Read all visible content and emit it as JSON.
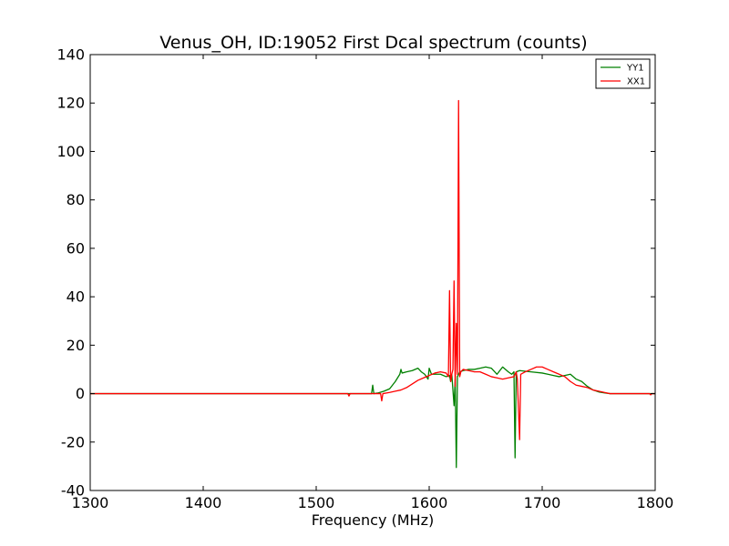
{
  "chart_data": {
    "type": "line",
    "title": "Venus_OH, ID:19052 First Dcal spectrum (counts)",
    "xlabel": "Frequency (MHz)",
    "ylabel": "",
    "xlim": [
      1300,
      1800
    ],
    "ylim": [
      -40,
      140
    ],
    "xticks": [
      1300,
      1400,
      1500,
      1600,
      1700,
      1800
    ],
    "yticks": [
      -40,
      -20,
      0,
      20,
      40,
      60,
      80,
      100,
      120,
      140
    ],
    "grid": false,
    "legend_position": "top-right",
    "series": [
      {
        "name": "YY1",
        "color": "#008000",
        "points": [
          [
            1300,
            0
          ],
          [
            1400,
            0
          ],
          [
            1500,
            0
          ],
          [
            1549,
            0
          ],
          [
            1550,
            3.5
          ],
          [
            1551,
            0
          ],
          [
            1555,
            0.3
          ],
          [
            1560,
            1
          ],
          [
            1565,
            2
          ],
          [
            1570,
            5
          ],
          [
            1574,
            8
          ],
          [
            1575,
            10
          ],
          [
            1576,
            8.5
          ],
          [
            1580,
            9
          ],
          [
            1585,
            9.5
          ],
          [
            1590,
            10.5
          ],
          [
            1593,
            9
          ],
          [
            1596,
            8
          ],
          [
            1599,
            6
          ],
          [
            1600,
            10.5
          ],
          [
            1602,
            8
          ],
          [
            1606,
            8
          ],
          [
            1610,
            8
          ],
          [
            1615,
            7
          ],
          [
            1618,
            7.5
          ],
          [
            1619,
            5
          ],
          [
            1620,
            8
          ],
          [
            1622,
            -5
          ],
          [
            1623,
            6
          ],
          [
            1624,
            -30.5
          ],
          [
            1625,
            7
          ],
          [
            1627,
            9
          ],
          [
            1630,
            9.5
          ],
          [
            1635,
            10
          ],
          [
            1640,
            10
          ],
          [
            1645,
            10.5
          ],
          [
            1650,
            11
          ],
          [
            1655,
            10.5
          ],
          [
            1660,
            8
          ],
          [
            1665,
            11
          ],
          [
            1670,
            9
          ],
          [
            1673,
            8
          ],
          [
            1675,
            9
          ],
          [
            1676,
            -26.5
          ],
          [
            1677,
            9
          ],
          [
            1680,
            9.5
          ],
          [
            1690,
            9
          ],
          [
            1700,
            8.5
          ],
          [
            1705,
            8
          ],
          [
            1710,
            7.5
          ],
          [
            1715,
            7
          ],
          [
            1720,
            7.5
          ],
          [
            1725,
            8
          ],
          [
            1730,
            6
          ],
          [
            1735,
            5
          ],
          [
            1740,
            3
          ],
          [
            1745,
            1.5
          ],
          [
            1750,
            0.7
          ],
          [
            1755,
            0.3
          ],
          [
            1760,
            0
          ],
          [
            1800,
            0
          ]
        ]
      },
      {
        "name": "XX1",
        "color": "#ff0000",
        "points": [
          [
            1300,
            0
          ],
          [
            1400,
            0
          ],
          [
            1500,
            0
          ],
          [
            1528,
            0
          ],
          [
            1529,
            -1
          ],
          [
            1530,
            0
          ],
          [
            1550,
            0
          ],
          [
            1557,
            0
          ],
          [
            1558,
            -3
          ],
          [
            1559,
            0
          ],
          [
            1565,
            0.5
          ],
          [
            1570,
            1
          ],
          [
            1575,
            1.5
          ],
          [
            1580,
            2.5
          ],
          [
            1585,
            4
          ],
          [
            1590,
            5.5
          ],
          [
            1595,
            6.5
          ],
          [
            1600,
            7.5
          ],
          [
            1605,
            8.5
          ],
          [
            1610,
            9
          ],
          [
            1615,
            8.5
          ],
          [
            1617,
            7
          ],
          [
            1618,
            42.5
          ],
          [
            1619,
            5
          ],
          [
            1620,
            8
          ],
          [
            1621,
            10
          ],
          [
            1622,
            46.5
          ],
          [
            1623,
            3
          ],
          [
            1624,
            29
          ],
          [
            1625,
            8
          ],
          [
            1626,
            121
          ],
          [
            1627,
            7
          ],
          [
            1628,
            9
          ],
          [
            1630,
            10
          ],
          [
            1635,
            9.5
          ],
          [
            1640,
            9
          ],
          [
            1645,
            9
          ],
          [
            1650,
            8
          ],
          [
            1655,
            7
          ],
          [
            1660,
            6.5
          ],
          [
            1665,
            6
          ],
          [
            1670,
            6.5
          ],
          [
            1675,
            7
          ],
          [
            1677,
            9
          ],
          [
            1678,
            6
          ],
          [
            1680,
            -19
          ],
          [
            1681,
            8
          ],
          [
            1685,
            9
          ],
          [
            1690,
            10
          ],
          [
            1695,
            11
          ],
          [
            1700,
            11
          ],
          [
            1705,
            10
          ],
          [
            1710,
            9
          ],
          [
            1715,
            8
          ],
          [
            1720,
            7
          ],
          [
            1725,
            5
          ],
          [
            1730,
            3.5
          ],
          [
            1735,
            3
          ],
          [
            1740,
            2.5
          ],
          [
            1745,
            1.5
          ],
          [
            1750,
            1
          ],
          [
            1755,
            0.5
          ],
          [
            1760,
            0
          ],
          [
            1795,
            0
          ],
          [
            1796,
            -0.5
          ],
          [
            1797,
            0
          ],
          [
            1800,
            0
          ]
        ]
      }
    ]
  }
}
